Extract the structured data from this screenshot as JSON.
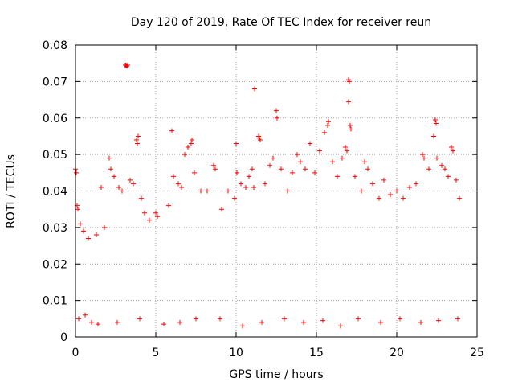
{
  "chart_data": {
    "type": "scatter",
    "title": "Day 120 of 2019, Rate Of TEC Index for receiver reun",
    "xlabel": "GPS time / hours",
    "ylabel": "ROTI / TECUs",
    "xlim": [
      0,
      25
    ],
    "ylim": [
      0,
      0.08
    ],
    "xticks": [
      0,
      5,
      10,
      15,
      20,
      25
    ],
    "xtick_labels": [
      "0",
      "5",
      "10",
      "15",
      "20",
      "25"
    ],
    "yticks": [
      0,
      0.01,
      0.02,
      0.03,
      0.04,
      0.05,
      0.06,
      0.07,
      0.08
    ],
    "ytick_labels": [
      "0",
      "0.01",
      "0.02",
      "0.03",
      "0.04",
      "0.05",
      "0.06",
      "0.07",
      "0.08"
    ],
    "grid": true,
    "marker": "+",
    "color": "#ff0000",
    "series": [
      {
        "name": "ROTI",
        "points": [
          [
            0.0,
            0.046
          ],
          [
            0.05,
            0.045
          ],
          [
            0.1,
            0.036
          ],
          [
            0.15,
            0.035
          ],
          [
            0.3,
            0.031
          ],
          [
            0.5,
            0.029
          ],
          [
            0.8,
            0.027
          ],
          [
            1.3,
            0.028
          ],
          [
            1.6,
            0.041
          ],
          [
            1.8,
            0.03
          ],
          [
            2.1,
            0.049
          ],
          [
            2.2,
            0.046
          ],
          [
            2.4,
            0.044
          ],
          [
            2.7,
            0.041
          ],
          [
            2.9,
            0.04
          ],
          [
            3.15,
            0.0745
          ],
          [
            3.2,
            0.0742
          ],
          [
            3.1,
            0.0745
          ],
          [
            3.25,
            0.0745
          ],
          [
            3.4,
            0.043
          ],
          [
            3.6,
            0.042
          ],
          [
            3.8,
            0.054
          ],
          [
            3.85,
            0.053
          ],
          [
            3.9,
            0.055
          ],
          [
            4.1,
            0.038
          ],
          [
            4.3,
            0.034
          ],
          [
            4.6,
            0.032
          ],
          [
            5.0,
            0.034
          ],
          [
            5.1,
            0.033
          ],
          [
            5.5,
            0.0035
          ],
          [
            5.8,
            0.036
          ],
          [
            6.0,
            0.0565
          ],
          [
            6.1,
            0.044
          ],
          [
            6.4,
            0.042
          ],
          [
            6.6,
            0.041
          ],
          [
            6.8,
            0.05
          ],
          [
            7.0,
            0.052
          ],
          [
            7.2,
            0.053
          ],
          [
            7.25,
            0.054
          ],
          [
            7.4,
            0.045
          ],
          [
            7.8,
            0.04
          ],
          [
            8.2,
            0.04
          ],
          [
            8.6,
            0.047
          ],
          [
            8.7,
            0.046
          ],
          [
            9.1,
            0.035
          ],
          [
            9.5,
            0.04
          ],
          [
            9.9,
            0.038
          ],
          [
            10.0,
            0.053
          ],
          [
            10.05,
            0.045
          ],
          [
            10.3,
            0.042
          ],
          [
            10.6,
            0.041
          ],
          [
            10.8,
            0.044
          ],
          [
            11.0,
            0.046
          ],
          [
            11.1,
            0.041
          ],
          [
            11.15,
            0.068
          ],
          [
            11.4,
            0.055
          ],
          [
            11.45,
            0.0545
          ],
          [
            11.5,
            0.054
          ],
          [
            11.8,
            0.042
          ],
          [
            12.1,
            0.047
          ],
          [
            12.3,
            0.049
          ],
          [
            12.5,
            0.062
          ],
          [
            12.55,
            0.06
          ],
          [
            12.8,
            0.046
          ],
          [
            13.2,
            0.04
          ],
          [
            13.5,
            0.045
          ],
          [
            13.8,
            0.05
          ],
          [
            14.0,
            0.048
          ],
          [
            14.3,
            0.046
          ],
          [
            14.6,
            0.053
          ],
          [
            14.9,
            0.045
          ],
          [
            15.2,
            0.051
          ],
          [
            15.5,
            0.056
          ],
          [
            15.7,
            0.058
          ],
          [
            15.75,
            0.059
          ],
          [
            16.0,
            0.048
          ],
          [
            16.3,
            0.044
          ],
          [
            16.6,
            0.049
          ],
          [
            16.8,
            0.052
          ],
          [
            16.9,
            0.051
          ],
          [
            17.0,
            0.0705
          ],
          [
            17.05,
            0.07
          ],
          [
            17.0,
            0.0645
          ],
          [
            17.1,
            0.058
          ],
          [
            17.15,
            0.057
          ],
          [
            17.4,
            0.044
          ],
          [
            17.8,
            0.04
          ],
          [
            18.0,
            0.048
          ],
          [
            18.2,
            0.046
          ],
          [
            18.5,
            0.042
          ],
          [
            18.9,
            0.038
          ],
          [
            19.2,
            0.043
          ],
          [
            19.6,
            0.039
          ],
          [
            20.0,
            0.04
          ],
          [
            20.4,
            0.038
          ],
          [
            20.8,
            0.041
          ],
          [
            21.2,
            0.042
          ],
          [
            21.6,
            0.05
          ],
          [
            21.7,
            0.049
          ],
          [
            22.0,
            0.046
          ],
          [
            22.3,
            0.055
          ],
          [
            22.4,
            0.0595
          ],
          [
            22.45,
            0.0585
          ],
          [
            22.5,
            0.049
          ],
          [
            22.8,
            0.047
          ],
          [
            23.0,
            0.046
          ],
          [
            23.2,
            0.044
          ],
          [
            23.4,
            0.052
          ],
          [
            23.5,
            0.051
          ],
          [
            23.7,
            0.043
          ],
          [
            23.9,
            0.038
          ],
          [
            0.2,
            0.005
          ],
          [
            0.6,
            0.006
          ],
          [
            1.0,
            0.004
          ],
          [
            1.4,
            0.0035
          ],
          [
            2.6,
            0.004
          ],
          [
            4.0,
            0.005
          ],
          [
            6.5,
            0.004
          ],
          [
            7.5,
            0.005
          ],
          [
            9.0,
            0.005
          ],
          [
            10.4,
            0.003
          ],
          [
            11.6,
            0.004
          ],
          [
            13.0,
            0.005
          ],
          [
            14.2,
            0.004
          ],
          [
            15.4,
            0.0045
          ],
          [
            16.5,
            0.003
          ],
          [
            17.6,
            0.005
          ],
          [
            19.0,
            0.004
          ],
          [
            20.2,
            0.005
          ],
          [
            21.5,
            0.004
          ],
          [
            22.6,
            0.0045
          ],
          [
            23.8,
            0.005
          ]
        ]
      }
    ]
  }
}
